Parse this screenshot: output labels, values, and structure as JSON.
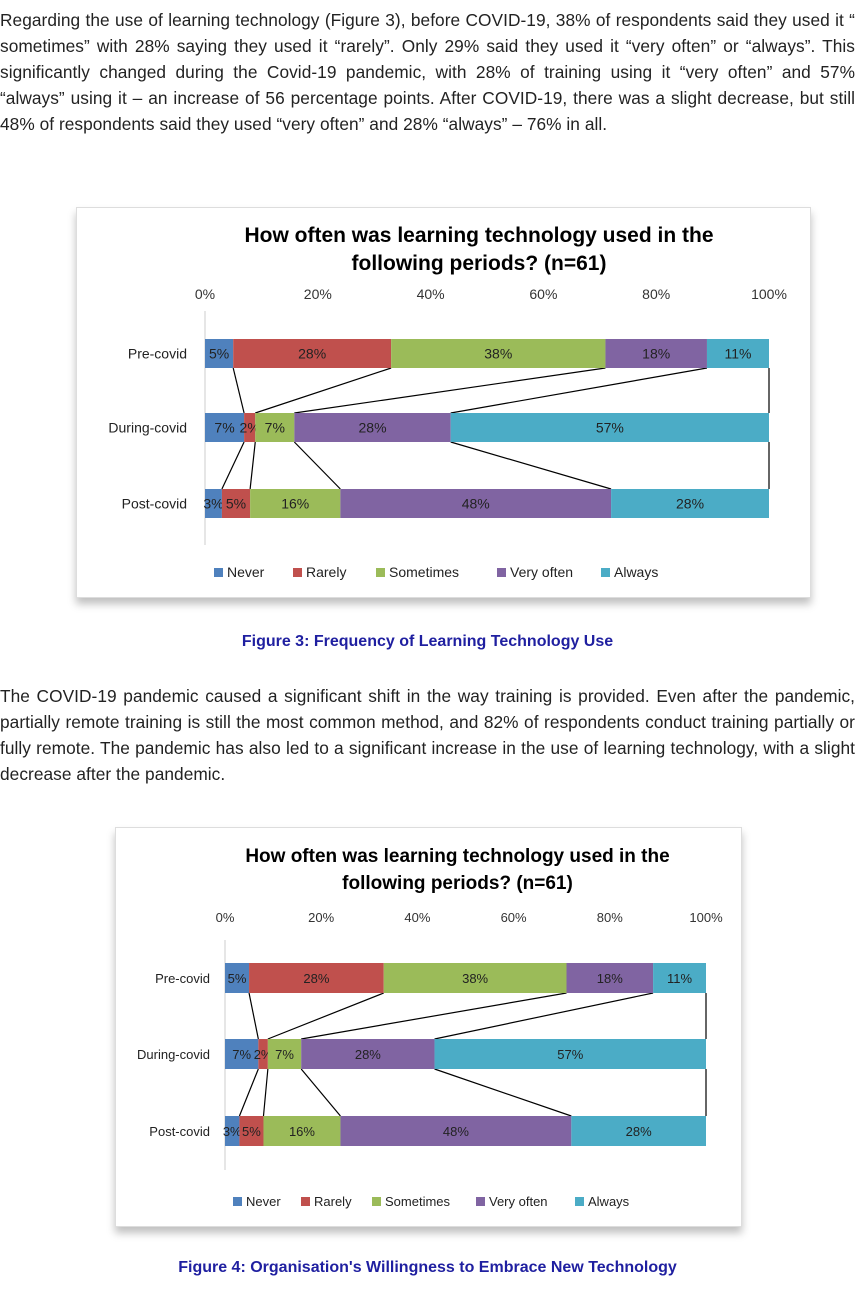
{
  "paragraphs": [
    "Regarding the use of learning technology (Figure 3), before COVID-19, 38% of respondents said they used it “ sometimes” with 28% saying they used it “rarely”. Only 29% said they used it “very often” or “always”. This significantly changed during the Covid-19 pandemic, with 28% of training using it “very often” and 57% “always” using it – an increase of 56 percentage points. After COVID-19, there was a slight decrease, but still 48% of respondents said they used “very often” and 28% “always” – 76% in all.",
    "The COVID-19 pandemic caused a significant shift in the way training is provided. Even after the pandemic, partially remote training is still the most common method, and 82% of respondents conduct training partially or fully remote. The pandemic has also led to a significant increase in the use of learning technology, with a slight decrease after the pandemic."
  ],
  "captions": [
    "Figure 3: Frequency of Learning Technology Use",
    "Figure 4: Organisation's Willingness to Embrace New Technology"
  ],
  "chart_data": [
    {
      "type": "bar",
      "orientation": "horizontal-stacked-100",
      "title": "How often was learning technology used in the following periods? (n=61)",
      "title_lines": [
        "How often was learning technology used in the",
        "following periods? (n=61)"
      ],
      "categories": [
        "Pre-covid",
        "During-covid",
        "Post-covid"
      ],
      "xticks": [
        "0%",
        "20%",
        "40%",
        "60%",
        "80%",
        "100%"
      ],
      "xlim": [
        0,
        100
      ],
      "series_lines": true,
      "legend": "bottom",
      "series": [
        {
          "name": "Never",
          "color": "#4f81bd",
          "values": [
            5,
            7,
            3
          ]
        },
        {
          "name": "Rarely",
          "color": "#c0504d",
          "values": [
            28,
            2,
            5
          ]
        },
        {
          "name": "Sometimes",
          "color": "#9bbb59",
          "values": [
            38,
            7,
            16
          ]
        },
        {
          "name": "Very often",
          "color": "#8064a2",
          "values": [
            18,
            28,
            48
          ]
        },
        {
          "name": "Always",
          "color": "#4bacc6",
          "values": [
            11,
            57,
            28
          ]
        }
      ]
    },
    {
      "type": "bar",
      "orientation": "horizontal-stacked-100",
      "title": "How often was learning technology used in the following periods? (n=61)",
      "title_lines": [
        "How often was learning technology used in the",
        "following periods? (n=61)"
      ],
      "categories": [
        "Pre-covid",
        "During-covid",
        "Post-covid"
      ],
      "xticks": [
        "0%",
        "20%",
        "40%",
        "60%",
        "80%",
        "100%"
      ],
      "xlim": [
        0,
        100
      ],
      "series_lines": true,
      "legend": "bottom",
      "series": [
        {
          "name": "Never",
          "color": "#4f81bd",
          "values": [
            5,
            7,
            3
          ]
        },
        {
          "name": "Rarely",
          "color": "#c0504d",
          "values": [
            28,
            2,
            5
          ]
        },
        {
          "name": "Sometimes",
          "color": "#9bbb59",
          "values": [
            38,
            7,
            16
          ]
        },
        {
          "name": "Very often",
          "color": "#8064a2",
          "values": [
            18,
            28,
            48
          ]
        },
        {
          "name": "Always",
          "color": "#4bacc6",
          "values": [
            11,
            57,
            28
          ]
        }
      ]
    }
  ]
}
